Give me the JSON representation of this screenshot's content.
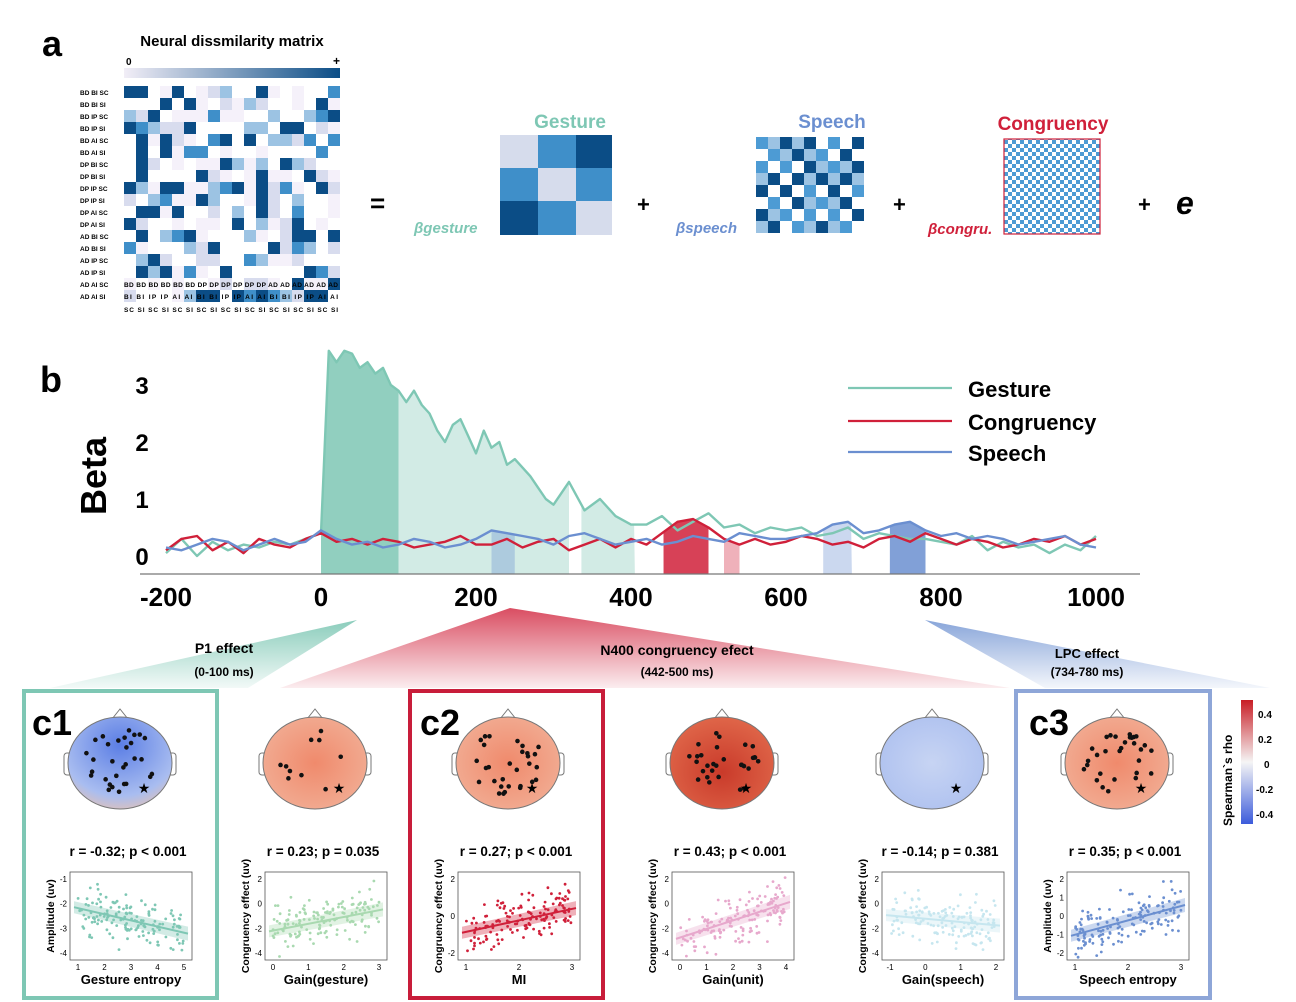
{
  "panel_a": {
    "label": "a",
    "matrix_title": "Neural dissmilarity matrix",
    "scale_min": "0",
    "scale_max": "+",
    "row_labels": [
      "BD BI SC",
      "BD BI SI",
      "BD IP SC",
      "BD IP SI",
      "BD AI SC",
      "BD AI SI",
      "DP BI SC",
      "DP BI SI",
      "DP IP SC",
      "DP IP SI",
      "DP AI SC",
      "DP AI SI",
      "AD BI SC",
      "AD BI SI",
      "AD IP SC",
      "AD IP SI",
      "AD AI SC",
      "AD AI SI"
    ],
    "col_labels_row1": "BD BD BD BD BD BD DP DP DP DP DP DP AD AD AD AD AD AD",
    "col_labels_row2": "BI BI IP IP AI AI BI BI IP IP AI AI BI BI IP IP AI AI",
    "col_labels_row3": "SC SI SC SI SC SI SC SI SC SI SC SI SC SI SC SI SC SI",
    "equals": "=",
    "plus": "+",
    "error_term": "e",
    "models": [
      {
        "title": "Gesture",
        "beta": "βgesture",
        "color": "#7ec7b4"
      },
      {
        "title": "Speech",
        "beta": "βspeech",
        "color": "#6b8fd0"
      },
      {
        "title": "Congruency",
        "beta": "βcongru.",
        "color": "#d0203a"
      }
    ]
  },
  "panel_b": {
    "label": "b",
    "ylabel": "Beta",
    "legend": [
      "Gesture",
      "Congruency",
      "Speech"
    ]
  },
  "chart_data": {
    "type": "line",
    "title": "",
    "xlabel": "",
    "ylabel": "Beta",
    "xlim": [
      -200,
      1000
    ],
    "ylim": [
      0,
      3.5
    ],
    "x_ticks": [
      "-200",
      "0",
      "200",
      "400",
      "600",
      "800",
      "1000"
    ],
    "y_ticks": [
      "0",
      "1",
      "2",
      "3"
    ],
    "series": [
      {
        "name": "Gesture",
        "color": "#7ec7b4",
        "x": [
          -200,
          -180,
          -160,
          -140,
          -120,
          -100,
          -80,
          -60,
          -40,
          -20,
          0,
          10,
          20,
          30,
          40,
          50,
          60,
          70,
          80,
          90,
          100,
          110,
          120,
          130,
          140,
          150,
          160,
          170,
          180,
          190,
          200,
          210,
          220,
          230,
          240,
          250,
          260,
          270,
          280,
          290,
          300,
          320,
          340,
          360,
          380,
          400,
          420,
          440,
          460,
          480,
          500,
          520,
          540,
          560,
          580,
          600,
          620,
          640,
          660,
          680,
          700,
          720,
          740,
          760,
          780,
          800,
          820,
          840,
          860,
          880,
          900,
          920,
          940,
          960,
          980,
          1000
        ],
        "y": [
          0.05,
          0.3,
          0.0,
          0.25,
          0.1,
          0.2,
          0.15,
          0.25,
          0.2,
          0.3,
          0.4,
          3.6,
          3.4,
          3.6,
          3.55,
          3.3,
          3.4,
          3.2,
          3.3,
          3.0,
          2.9,
          2.7,
          2.9,
          2.65,
          2.5,
          2.2,
          2.0,
          2.3,
          2.4,
          2.1,
          1.8,
          2.2,
          1.9,
          2.0,
          1.6,
          1.7,
          1.55,
          1.4,
          1.2,
          1.0,
          0.9,
          1.3,
          0.8,
          1.0,
          0.7,
          0.55,
          0.55,
          0.7,
          0.45,
          0.6,
          0.75,
          0.5,
          0.55,
          0.4,
          0.5,
          0.45,
          0.5,
          0.35,
          0.4,
          0.5,
          0.3,
          0.4,
          0.35,
          0.3,
          0.3,
          0.25,
          0.2,
          0.35,
          0.1,
          0.25,
          0.15,
          0.2,
          0.05,
          0.2,
          0.1,
          0.35
        ]
      },
      {
        "name": "Congruency",
        "color": "#d0203a",
        "x": [
          -200,
          -180,
          -160,
          -140,
          -120,
          -100,
          -80,
          -60,
          -40,
          -20,
          0,
          20,
          40,
          60,
          80,
          100,
          120,
          140,
          160,
          180,
          200,
          220,
          240,
          260,
          280,
          300,
          320,
          340,
          360,
          380,
          400,
          420,
          440,
          460,
          480,
          500,
          520,
          540,
          560,
          580,
          600,
          620,
          640,
          660,
          680,
          700,
          720,
          740,
          760,
          780,
          800,
          820,
          840,
          860,
          880,
          900,
          920,
          940,
          960,
          980,
          1000
        ],
        "y": [
          0.1,
          0.3,
          0.35,
          0.1,
          0.25,
          0.05,
          0.3,
          0.2,
          0.15,
          0.3,
          0.4,
          0.25,
          0.3,
          0.2,
          0.3,
          0.25,
          0.15,
          0.2,
          0.25,
          0.35,
          0.2,
          0.2,
          0.3,
          0.15,
          0.25,
          0.3,
          0.1,
          0.2,
          0.3,
          0.15,
          0.3,
          0.2,
          0.4,
          0.6,
          0.65,
          0.5,
          0.3,
          0.2,
          0.3,
          0.2,
          0.25,
          0.35,
          0.3,
          0.2,
          0.25,
          0.15,
          0.3,
          0.35,
          0.25,
          0.4,
          0.3,
          0.2,
          0.3,
          0.25,
          0.15,
          0.2,
          0.3,
          0.25,
          0.35,
          0.2,
          0.3
        ]
      },
      {
        "name": "Speech",
        "color": "#6b8fd0",
        "x": [
          -200,
          -180,
          -160,
          -140,
          -120,
          -100,
          -80,
          -60,
          -40,
          -20,
          0,
          20,
          40,
          60,
          80,
          100,
          120,
          140,
          160,
          180,
          200,
          220,
          240,
          260,
          280,
          300,
          320,
          340,
          360,
          380,
          400,
          420,
          440,
          460,
          480,
          500,
          520,
          540,
          560,
          580,
          600,
          620,
          640,
          660,
          680,
          700,
          720,
          740,
          760,
          780,
          800,
          820,
          840,
          860,
          880,
          900,
          920,
          940,
          960,
          980,
          1000
        ],
        "y": [
          0.15,
          0.1,
          0.2,
          0.3,
          0.25,
          0.1,
          0.2,
          0.3,
          0.2,
          0.25,
          0.45,
          0.3,
          0.2,
          0.25,
          0.15,
          0.2,
          0.3,
          0.25,
          0.15,
          0.2,
          0.3,
          0.45,
          0.4,
          0.35,
          0.3,
          0.2,
          0.35,
          0.4,
          0.3,
          0.2,
          0.25,
          0.3,
          0.2,
          0.25,
          0.35,
          0.3,
          0.25,
          0.4,
          0.35,
          0.3,
          0.3,
          0.35,
          0.4,
          0.55,
          0.6,
          0.4,
          0.45,
          0.55,
          0.6,
          0.45,
          0.35,
          0.4,
          0.3,
          0.35,
          0.3,
          0.2,
          0.25,
          0.3,
          0.35,
          0.2,
          0.15
        ]
      }
    ],
    "shaded": [
      {
        "series": "Gesture",
        "from": 0,
        "to": 100,
        "shade": "dark"
      },
      {
        "series": "Gesture",
        "from": 100,
        "to": 320,
        "shade": "light"
      },
      {
        "series": "Gesture",
        "from": 336,
        "to": 405,
        "shade": "light"
      },
      {
        "series": "Congruency",
        "from": 442,
        "to": 500,
        "shade": "dark"
      },
      {
        "series": "Congruency",
        "from": 520,
        "to": 540,
        "shade": "light"
      },
      {
        "series": "Speech",
        "from": 220,
        "to": 250,
        "shade": "light"
      },
      {
        "series": "Speech",
        "from": 648,
        "to": 685,
        "shade": "light"
      },
      {
        "series": "Speech",
        "from": 734,
        "to": 780,
        "shade": "dark"
      }
    ]
  },
  "effects": [
    {
      "name": "P1 effect",
      "window": "(0-100 ms)"
    },
    {
      "name": "N400 congruency efect",
      "window": "(442-500 ms)"
    },
    {
      "name": "LPC effect",
      "window": "(734-780 ms)"
    }
  ],
  "colorbar": {
    "label": "Spearman`s rho",
    "ticks": [
      "0.4",
      "0.2",
      "0",
      "-0.2",
      "-0.4"
    ]
  },
  "subpanels": [
    {
      "tag": "c1",
      "stat": "r = -0.32; p < 0.001",
      "ylabel": "Amplitude (uv)",
      "xlabel": "Gesture entropy",
      "xticks": [
        "1",
        "2",
        "3",
        "4",
        "5"
      ],
      "yticks": [
        "-1",
        "-2",
        "-3",
        "-4"
      ],
      "color": "#7ec7b4",
      "slope": -0.3,
      "head": "blue"
    },
    {
      "tag": "",
      "stat": "r = 0.23; p = 0.035",
      "ylabel": "Congruency effect (uv)",
      "xlabel": "Gain(gesture)",
      "xticks": [
        "0",
        "1",
        "2",
        "3"
      ],
      "yticks": [
        "2",
        "0",
        "-2",
        "-4"
      ],
      "color": "#a9d9b0",
      "slope": 0.25,
      "head": "orange"
    },
    {
      "tag": "c2",
      "stat": "r = 0.27; p < 0.001",
      "ylabel": "Congruency effect (uv)",
      "xlabel": "MI",
      "xticks": [
        "1",
        "2",
        "3"
      ],
      "yticks": [
        "2",
        "0",
        "-2"
      ],
      "color": "#d0203a",
      "slope": 0.28,
      "head": "orange"
    },
    {
      "tag": "",
      "stat": "r = 0.43; p < 0.001",
      "ylabel": "Congruency effect (uv)",
      "xlabel": "Gain(unit)",
      "xticks": [
        "0",
        "1",
        "2",
        "3",
        "4"
      ],
      "yticks": [
        "2",
        "0",
        "-2",
        "-4"
      ],
      "color": "#e7a8cc",
      "slope": 0.42,
      "head": "red"
    },
    {
      "tag": "",
      "stat": "r = -0.14; p = 0.381",
      "ylabel": "Congruency effect (uv)",
      "xlabel": "Gain(speech)",
      "xticks": [
        "-1",
        "0",
        "1",
        "2"
      ],
      "yticks": [
        "2",
        "0",
        "-2",
        "-4"
      ],
      "color": "#c6e6ef",
      "slope": -0.12,
      "head": "lightblue"
    },
    {
      "tag": "c3",
      "stat": "r = 0.35; p < 0.001",
      "ylabel": "Amplitude (uv)",
      "xlabel": "Speech entropy",
      "xticks": [
        "1",
        "2",
        "3"
      ],
      "yticks": [
        "2",
        "1",
        "0",
        "-1",
        "-2"
      ],
      "color": "#6b8fd0",
      "slope": 0.35,
      "head": "orange"
    }
  ]
}
